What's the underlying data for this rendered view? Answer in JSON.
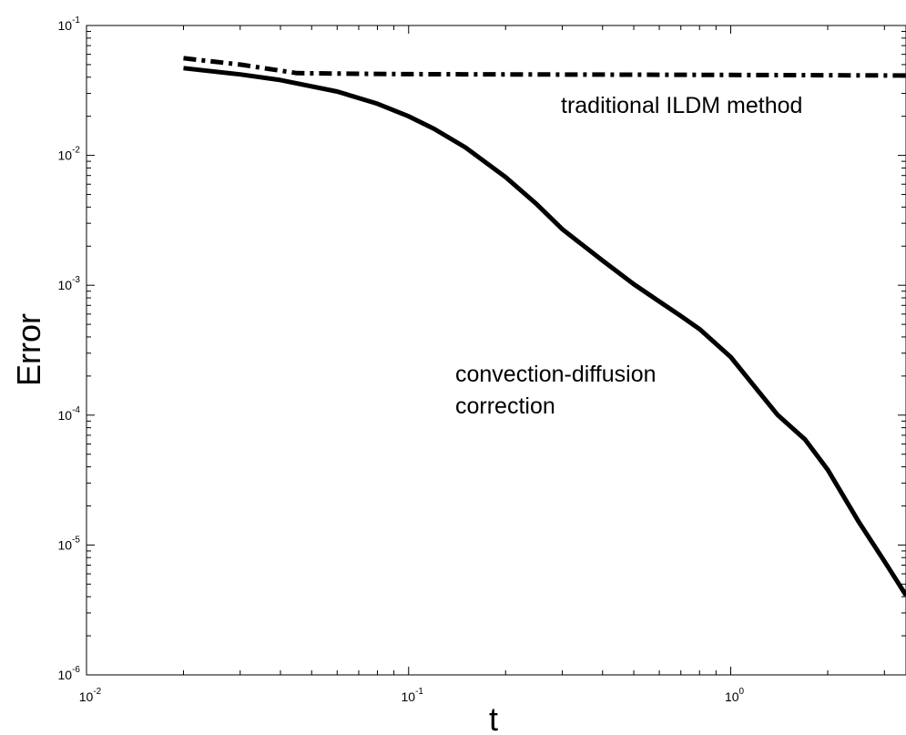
{
  "chart_data": {
    "type": "line",
    "xscale": "log",
    "yscale": "log",
    "xlabel": "t",
    "ylabel": "Error",
    "xlim": [
      0.01,
      3.5
    ],
    "ylim": [
      1e-06,
      0.1
    ],
    "grid": false,
    "x_ticks": [
      {
        "base": "10",
        "exp": "-2",
        "value": 0.01
      },
      {
        "base": "10",
        "exp": "-1",
        "value": 0.1
      },
      {
        "base": "10",
        "exp": "0",
        "value": 1
      }
    ],
    "y_ticks": [
      {
        "base": "10",
        "exp": "-6",
        "value": 1e-06
      },
      {
        "base": "10",
        "exp": "-5",
        "value": 1e-05
      },
      {
        "base": "10",
        "exp": "-4",
        "value": 0.0001
      },
      {
        "base": "10",
        "exp": "-3",
        "value": 0.001
      },
      {
        "base": "10",
        "exp": "-2",
        "value": 0.01
      },
      {
        "base": "10",
        "exp": "-1",
        "value": 0.1
      }
    ],
    "series": [
      {
        "style": "dash-dot",
        "color": "#000000",
        "x": [
          0.02,
          0.03,
          0.045,
          0.07,
          0.1,
          0.2,
          0.5,
          1.0,
          2.0,
          3.5
        ],
        "y": [
          0.056,
          0.05,
          0.043,
          0.0425,
          0.0422,
          0.042,
          0.0418,
          0.0416,
          0.0414,
          0.0412
        ]
      },
      {
        "style": "solid",
        "color": "#000000",
        "x": [
          0.02,
          0.03,
          0.04,
          0.06,
          0.08,
          0.1,
          0.12,
          0.15,
          0.2,
          0.25,
          0.3,
          0.4,
          0.5,
          0.6,
          0.7,
          0.8,
          1.0,
          1.2,
          1.4,
          1.7,
          2.0,
          2.5,
          3.0,
          3.5
        ],
        "y": [
          0.047,
          0.042,
          0.038,
          0.031,
          0.025,
          0.02,
          0.016,
          0.0115,
          0.0068,
          0.0042,
          0.0027,
          0.00155,
          0.00102,
          0.00075,
          0.00058,
          0.00046,
          0.00028,
          0.00016,
          0.0001,
          6.5e-05,
          3.8e-05,
          1.5e-05,
          7.5e-06,
          4.1e-06
        ]
      }
    ],
    "annotations": {
      "ildm": "traditional ILDM method",
      "cd_line1": "convection-diffusion",
      "cd_line2": "correction"
    }
  }
}
